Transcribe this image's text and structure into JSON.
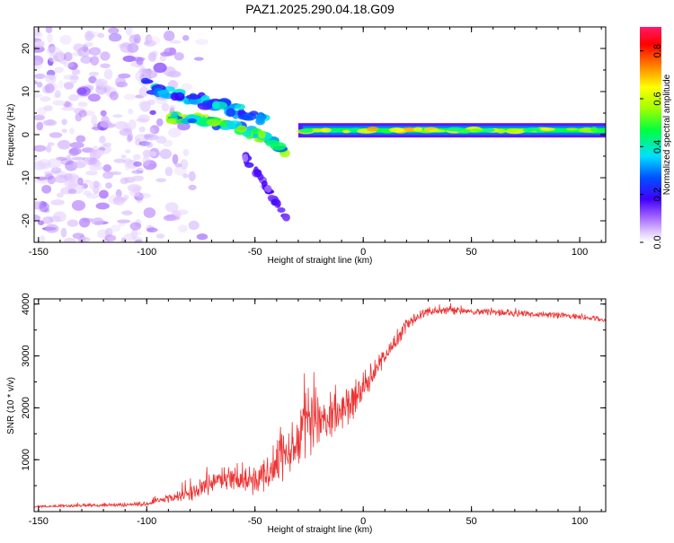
{
  "title": "PAZ1.2025.290.04.18.G09",
  "colors": {
    "snr_line": "#ee3333",
    "axis": "#000000"
  },
  "chart_data": [
    {
      "type": "heatmap",
      "id": "spectrogram",
      "xlabel": "Height of straight line (km)",
      "ylabel": "Frequency (Hz)",
      "xlim": [
        -152,
        112
      ],
      "ylim": [
        -25,
        25
      ],
      "xticks": [
        -150,
        -100,
        -50,
        0,
        50,
        100
      ],
      "yticks": [
        -20,
        -10,
        0,
        10,
        20
      ],
      "colorbar": {
        "label": "Normalized spectral amplitude",
        "range": [
          0,
          0.9
        ],
        "ticks": [
          "0.0",
          "0.2",
          "0.4",
          "0.6",
          "0.8"
        ],
        "tick_values": [
          0,
          0.2,
          0.4,
          0.6,
          0.8
        ]
      },
      "features": [
        {
          "name": "main-carrier",
          "x_range": [
            -30,
            112
          ],
          "freq_hz": 1,
          "amplitude": 0.55
        },
        {
          "name": "upper-branch",
          "points": [
            [
              -105,
              12
            ],
            [
              -90,
              10
            ],
            [
              -75,
              8
            ],
            [
              -60,
              6
            ],
            [
              -45,
              3
            ]
          ],
          "amplitude": 0.3
        },
        {
          "name": "lower-branch",
          "points": [
            [
              -90,
              4
            ],
            [
              -75,
              3.5
            ],
            [
              -60,
              2
            ],
            [
              -45,
              -1
            ],
            [
              -35,
              -4
            ]
          ],
          "amplitude": 0.45
        },
        {
          "name": "descending-tail",
          "points": [
            [
              -55,
              -5
            ],
            [
              -45,
              -12
            ],
            [
              -35,
              -20
            ]
          ],
          "amplitude": 0.15
        },
        {
          "name": "noise-region",
          "x_range": [
            -152,
            -85
          ],
          "freq_range": [
            -25,
            25
          ],
          "amplitude": 0.1
        }
      ]
    },
    {
      "type": "line",
      "id": "snr",
      "xlabel": "Height of straight line (km)",
      "ylabel": "SNR (10 * v/v)",
      "xlim": [
        -152,
        112
      ],
      "ylim": [
        0,
        4100
      ],
      "xticks": [
        -150,
        -100,
        -50,
        0,
        50,
        100
      ],
      "yticks": [
        1000,
        2000,
        3000,
        4000
      ],
      "series": [
        {
          "name": "SNR",
          "x": [
            -152,
            -140,
            -130,
            -120,
            -110,
            -100,
            -90,
            -80,
            -70,
            -60,
            -50,
            -45,
            -40,
            -35,
            -30,
            -25,
            -20,
            -15,
            -10,
            -5,
            0,
            5,
            10,
            15,
            20,
            25,
            30,
            40,
            50,
            60,
            70,
            80,
            90,
            100,
            112
          ],
          "y": [
            100,
            110,
            120,
            120,
            130,
            150,
            250,
            350,
            550,
            650,
            650,
            700,
            900,
            1100,
            1500,
            2100,
            1700,
            1900,
            2000,
            2100,
            2400,
            2700,
            3000,
            3300,
            3600,
            3750,
            3850,
            3880,
            3860,
            3840,
            3820,
            3800,
            3780,
            3750,
            3700
          ],
          "noise": [
            25,
            30,
            35,
            40,
            45,
            60,
            100,
            180,
            260,
            300,
            340,
            380,
            500,
            650,
            800,
            1100,
            600,
            500,
            450,
            420,
            380,
            300,
            250,
            200,
            150,
            120,
            100,
            90,
            80,
            80,
            80,
            70,
            70,
            70,
            60
          ]
        }
      ]
    }
  ]
}
